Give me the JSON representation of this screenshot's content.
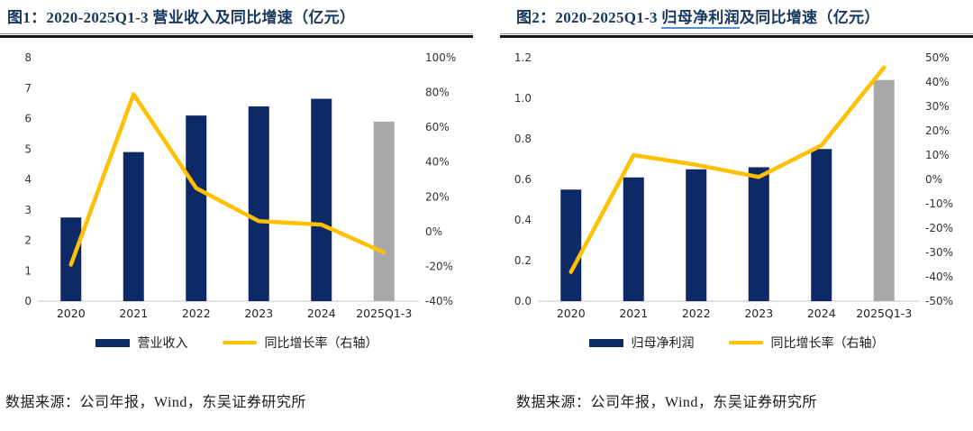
{
  "source_note": "数据来源：公司年报，Wind，东吴证券研究所",
  "colors": {
    "bar_navy": "#0e2a66",
    "bar_gray": "#a8a8a8",
    "line_yellow": "#ffc000",
    "title_navy": "#17375d",
    "axis_baseline": "#d9d9d9"
  },
  "chart_data": [
    {
      "type": "bar+line",
      "title": "图1：2020-2025Q1-3 营业收入及同比增速（亿元）",
      "title_segments": [
        {
          "text": "图1：2020-2025Q1-3 营业收入及同比增速（亿元）",
          "underline": false
        }
      ],
      "unit": "亿元",
      "categories": [
        "2020",
        "2021",
        "2022",
        "2023",
        "2024",
        "2025Q1-3"
      ],
      "series": [
        {
          "name": "营业收入",
          "type": "bar",
          "axis": "left",
          "color": "#0e2a66",
          "last_bar_color": "#a8a8a8",
          "values": [
            2.75,
            4.9,
            6.1,
            6.4,
            6.65,
            5.9
          ]
        },
        {
          "name": "同比增长率（右轴）",
          "type": "line",
          "axis": "right",
          "color": "#ffc000",
          "values": [
            -19,
            79,
            25,
            6,
            4,
            -12
          ]
        }
      ],
      "left_axis": {
        "min": 0,
        "max": 8,
        "step": 1,
        "decimals": 0
      },
      "right_axis": {
        "min": -40,
        "max": 100,
        "step": 20,
        "suffix": "%"
      },
      "legend_position": "bottom",
      "grid": false
    },
    {
      "type": "bar+line",
      "title": "图2：2020-2025Q1-3 归母净利润及同比增速（亿元）",
      "title_segments": [
        {
          "text": "图2：2020-2025Q1-3 ",
          "underline": false
        },
        {
          "text": "归母净利润",
          "underline": true
        },
        {
          "text": "及同比增速（亿元）",
          "underline": false
        }
      ],
      "unit": "亿元",
      "categories": [
        "2020",
        "2021",
        "2022",
        "2023",
        "2024",
        "2025Q1-3"
      ],
      "series": [
        {
          "name": "归母净利润",
          "type": "bar",
          "axis": "left",
          "color": "#0e2a66",
          "last_bar_color": "#a8a8a8",
          "values": [
            0.55,
            0.61,
            0.65,
            0.66,
            0.75,
            1.09
          ]
        },
        {
          "name": "同比增长率（右轴）",
          "type": "line",
          "axis": "right",
          "color": "#ffc000",
          "values": [
            -38,
            10,
            6,
            1,
            14,
            46
          ]
        }
      ],
      "left_axis": {
        "min": 0,
        "max": 1.2,
        "step": 0.2,
        "decimals": 1
      },
      "right_axis": {
        "min": -50,
        "max": 50,
        "step": 10,
        "suffix": "%"
      },
      "legend_position": "bottom",
      "grid": false
    }
  ]
}
